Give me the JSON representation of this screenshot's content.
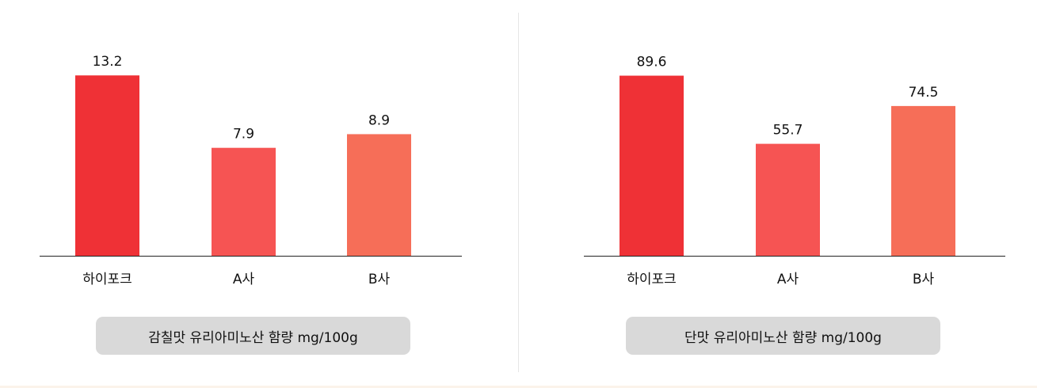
{
  "chart_data": [
    {
      "type": "bar",
      "title": "감칠맛 유리아미노산 함량 mg/100g",
      "categories": [
        "하이포크",
        "A사",
        "B사"
      ],
      "values": [
        13.2,
        7.9,
        8.9
      ],
      "value_labels": [
        "13.2",
        "7.9",
        "8.9"
      ],
      "colors": [
        "#ef3136",
        "#f65453",
        "#f66e58"
      ],
      "ylim": [
        0,
        15.3
      ],
      "grid": false,
      "legend": "none"
    },
    {
      "type": "bar",
      "title": "단맛 유리아미노산 함량 mg/100g",
      "categories": [
        "하이포크",
        "A사",
        "B사"
      ],
      "values": [
        89.6,
        55.7,
        74.5
      ],
      "value_labels": [
        "89.6",
        "55.7",
        "74.5"
      ],
      "colors": [
        "#ef3136",
        "#f65453",
        "#f66e58"
      ],
      "ylim": [
        0,
        104
      ],
      "grid": false,
      "legend": "none"
    }
  ]
}
